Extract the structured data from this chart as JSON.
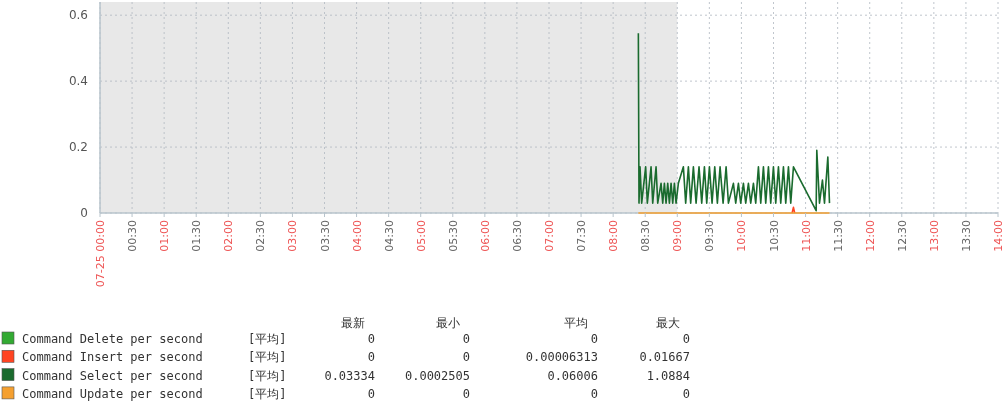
{
  "chart_data": {
    "type": "line",
    "xlim": [
      0,
      14
    ],
    "ylim": [
      0,
      0.64
    ],
    "xticks": [
      {
        "value": 0,
        "label": "07-25 00:00"
      },
      {
        "value": 0.5,
        "label": "00:30"
      },
      {
        "value": 1,
        "label": "01:00"
      },
      {
        "value": 1.5,
        "label": "01:30"
      },
      {
        "value": 2,
        "label": "02:00"
      },
      {
        "value": 2.5,
        "label": "02:30"
      },
      {
        "value": 3,
        "label": "03:00"
      },
      {
        "value": 3.5,
        "label": "03:30"
      },
      {
        "value": 4,
        "label": "04:00"
      },
      {
        "value": 4.5,
        "label": "04:30"
      },
      {
        "value": 5,
        "label": "05:00"
      },
      {
        "value": 5.5,
        "label": "05:30"
      },
      {
        "value": 6,
        "label": "06:00"
      },
      {
        "value": 6.5,
        "label": "06:30"
      },
      {
        "value": 7,
        "label": "07:00"
      },
      {
        "value": 7.5,
        "label": "07:30"
      },
      {
        "value": 8,
        "label": "08:00"
      },
      {
        "value": 8.5,
        "label": "08:30"
      },
      {
        "value": 9,
        "label": "09:00"
      },
      {
        "value": 9.5,
        "label": "09:30"
      },
      {
        "value": 10,
        "label": "10:00"
      },
      {
        "value": 10.5,
        "label": "10:30"
      },
      {
        "value": 11,
        "label": "11:00"
      },
      {
        "value": 11.5,
        "label": "11:30"
      },
      {
        "value": 12,
        "label": "12:00"
      },
      {
        "value": 12.5,
        "label": "12:30"
      },
      {
        "value": 13,
        "label": "13:00"
      },
      {
        "value": 13.5,
        "label": "13:30"
      },
      {
        "value": 14,
        "label": "14:00"
      }
    ],
    "yticks": [
      0,
      0.2,
      0.4,
      0.6
    ],
    "grid": true,
    "legend": "bottom",
    "line_style": "solid",
    "marker": "none",
    "bands": [
      {
        "axis": "x",
        "from": 0,
        "to": 9,
        "color": "#e8e8e8"
      }
    ],
    "series": [
      {
        "name": "Command Delete per second",
        "color": "#33aa33"
      },
      {
        "name": "Command Insert per second",
        "color": "#ff4422",
        "x": [
          10.79,
          10.811,
          10.83
        ],
        "values": [
          0,
          0.017,
          0
        ]
      },
      {
        "name": "Command Select per second",
        "color": "#1a6b2e",
        "x": [
          8.393,
          8.403,
          8.419,
          8.445,
          8.507,
          8.533,
          8.591,
          8.617,
          8.669,
          8.695,
          8.747,
          8.773,
          8.799,
          8.825,
          8.851,
          8.877,
          8.903,
          8.929,
          8.955,
          8.981,
          9.017,
          9.095,
          9.131,
          9.173,
          9.209,
          9.251,
          9.293,
          9.339,
          9.381,
          9.423,
          9.459,
          9.501,
          9.542,
          9.584,
          9.625,
          9.667,
          9.714,
          9.761,
          9.797,
          9.875,
          9.911,
          9.953,
          9.989,
          10.031,
          10.067,
          10.109,
          10.145,
          10.187,
          10.223,
          10.265,
          10.301,
          10.343,
          10.379,
          10.421,
          10.457,
          10.499,
          10.535,
          10.577,
          10.613,
          10.655,
          10.691,
          10.733,
          10.769,
          10.811,
          11.165,
          11.175,
          11.217,
          11.263,
          11.295,
          11.347,
          11.373
        ],
        "values": [
          0.545,
          0.03,
          0.14,
          0.03,
          0.14,
          0.03,
          0.14,
          0.03,
          0.14,
          0.03,
          0.09,
          0.03,
          0.09,
          0.03,
          0.09,
          0.03,
          0.09,
          0.03,
          0.09,
          0.03,
          0.09,
          0.14,
          0.03,
          0.14,
          0.03,
          0.14,
          0.03,
          0.14,
          0.03,
          0.14,
          0.03,
          0.14,
          0.03,
          0.14,
          0.03,
          0.14,
          0.03,
          0.14,
          0.03,
          0.09,
          0.03,
          0.09,
          0.03,
          0.09,
          0.03,
          0.09,
          0.03,
          0.09,
          0.03,
          0.14,
          0.03,
          0.14,
          0.03,
          0.14,
          0.03,
          0.14,
          0.03,
          0.14,
          0.03,
          0.14,
          0.03,
          0.14,
          0.03,
          0.14,
          0.007,
          0.19,
          0.03,
          0.1,
          0.03,
          0.17,
          0.03
        ]
      },
      {
        "name": "Command Update per second",
        "color": "#f5a030",
        "x": [
          8.393,
          11.373
        ],
        "values": [
          0,
          0
        ]
      }
    ],
    "annotations": [
      "最新",
      "最小",
      "平均",
      "最大",
      "[平均]",
      "0",
      "0",
      "0",
      "0",
      "[平均]",
      "0",
      "0",
      "0.00006313",
      "0.01667",
      "[平均]",
      "0.03334",
      "0.0002505",
      "0.06006",
      "1.0884",
      "[平均]",
      "0",
      "0",
      "0",
      "0"
    ]
  }
}
